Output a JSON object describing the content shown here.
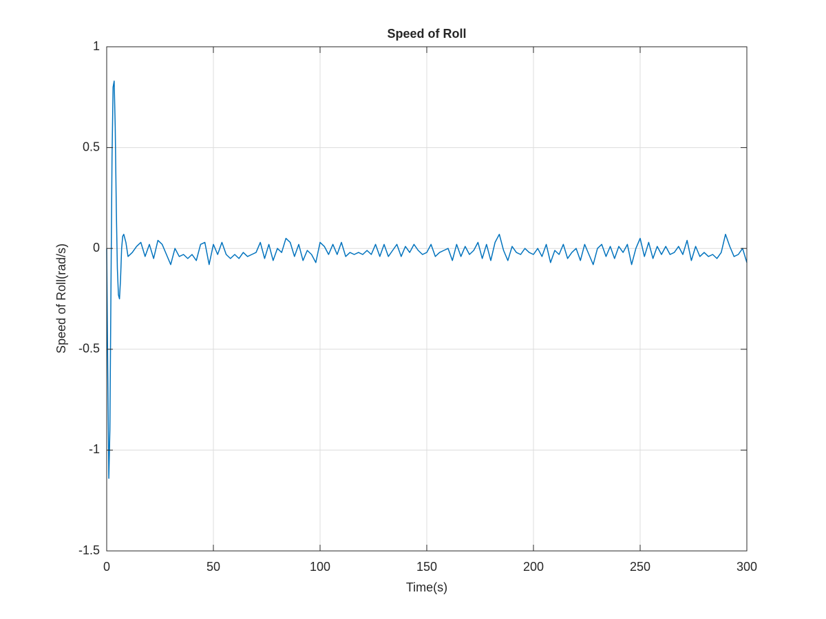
{
  "chart_data": {
    "type": "line",
    "title": "Speed of Roll",
    "xlabel": "Time(s)",
    "ylabel": "Speed of Roll(rad/s)",
    "xlim": [
      0,
      300
    ],
    "ylim": [
      -1.5,
      1
    ],
    "xticks": [
      0,
      50,
      100,
      150,
      200,
      250,
      300
    ],
    "yticks": [
      -1.5,
      -1,
      -0.5,
      0,
      0.5,
      1
    ],
    "grid": true,
    "x": [
      0,
      0.5,
      1,
      1.5,
      2,
      2.5,
      3,
      3.5,
      4,
      4.5,
      5,
      5.5,
      6,
      6.5,
      7,
      7.5,
      8,
      9,
      10,
      12,
      14,
      16,
      18,
      20,
      22,
      24,
      26,
      28,
      30,
      32,
      34,
      36,
      38,
      40,
      42,
      44,
      46,
      48,
      50,
      52,
      54,
      56,
      58,
      60,
      62,
      64,
      66,
      68,
      70,
      72,
      74,
      76,
      78,
      80,
      82,
      84,
      86,
      88,
      90,
      92,
      94,
      96,
      98,
      100,
      102,
      104,
      106,
      108,
      110,
      112,
      114,
      116,
      118,
      120,
      122,
      124,
      126,
      128,
      130,
      132,
      134,
      136,
      138,
      140,
      142,
      144,
      146,
      148,
      150,
      152,
      154,
      156,
      158,
      160,
      162,
      164,
      166,
      168,
      170,
      172,
      174,
      176,
      178,
      180,
      182,
      184,
      186,
      188,
      190,
      192,
      194,
      196,
      198,
      200,
      202,
      204,
      206,
      208,
      210,
      212,
      214,
      216,
      218,
      220,
      222,
      224,
      226,
      228,
      230,
      232,
      234,
      236,
      238,
      240,
      242,
      244,
      246,
      248,
      250,
      252,
      254,
      256,
      258,
      260,
      262,
      264,
      266,
      268,
      270,
      272,
      274,
      276,
      278,
      280,
      282,
      284,
      286,
      288,
      290,
      292,
      294,
      296,
      298,
      300
    ],
    "series": [
      {
        "color": "#0072bd",
        "values": [
          0,
          -0.6,
          -1.14,
          -0.9,
          -0.2,
          0.45,
          0.8,
          0.83,
          0.6,
          0.2,
          -0.1,
          -0.23,
          -0.25,
          -0.15,
          0.0,
          0.06,
          0.07,
          0.03,
          -0.04,
          -0.02,
          0.01,
          0.03,
          -0.04,
          0.02,
          -0.05,
          0.04,
          0.02,
          -0.03,
          -0.08,
          0.0,
          -0.04,
          -0.03,
          -0.05,
          -0.03,
          -0.06,
          0.02,
          0.03,
          -0.08,
          0.02,
          -0.03,
          0.03,
          -0.03,
          -0.05,
          -0.03,
          -0.05,
          -0.02,
          -0.04,
          -0.03,
          -0.02,
          0.03,
          -0.05,
          0.02,
          -0.06,
          0.0,
          -0.02,
          0.05,
          0.03,
          -0.04,
          0.02,
          -0.06,
          -0.01,
          -0.03,
          -0.07,
          0.03,
          0.01,
          -0.03,
          0.02,
          -0.03,
          0.03,
          -0.04,
          -0.02,
          -0.03,
          -0.02,
          -0.03,
          -0.01,
          -0.03,
          0.02,
          -0.04,
          0.02,
          -0.04,
          -0.01,
          0.02,
          -0.04,
          0.01,
          -0.02,
          0.02,
          -0.01,
          -0.03,
          -0.02,
          0.02,
          -0.04,
          -0.02,
          -0.01,
          0.0,
          -0.06,
          0.02,
          -0.04,
          0.01,
          -0.03,
          -0.01,
          0.03,
          -0.05,
          0.02,
          -0.06,
          0.03,
          0.07,
          -0.01,
          -0.06,
          0.01,
          -0.02,
          -0.03,
          0.0,
          -0.02,
          -0.03,
          0.0,
          -0.04,
          0.02,
          -0.07,
          -0.01,
          -0.03,
          0.02,
          -0.05,
          -0.02,
          0.0,
          -0.06,
          0.02,
          -0.03,
          -0.08,
          0.0,
          0.02,
          -0.04,
          0.01,
          -0.05,
          0.01,
          -0.02,
          0.02,
          -0.08,
          0.0,
          0.05,
          -0.04,
          0.03,
          -0.05,
          0.01,
          -0.03,
          0.01,
          -0.03,
          -0.02,
          0.01,
          -0.03,
          0.04,
          -0.06,
          0.01,
          -0.04,
          -0.02,
          -0.04,
          -0.03,
          -0.05,
          -0.02,
          0.07,
          0.01,
          -0.04,
          -0.03,
          0.0,
          -0.07
        ]
      }
    ]
  }
}
